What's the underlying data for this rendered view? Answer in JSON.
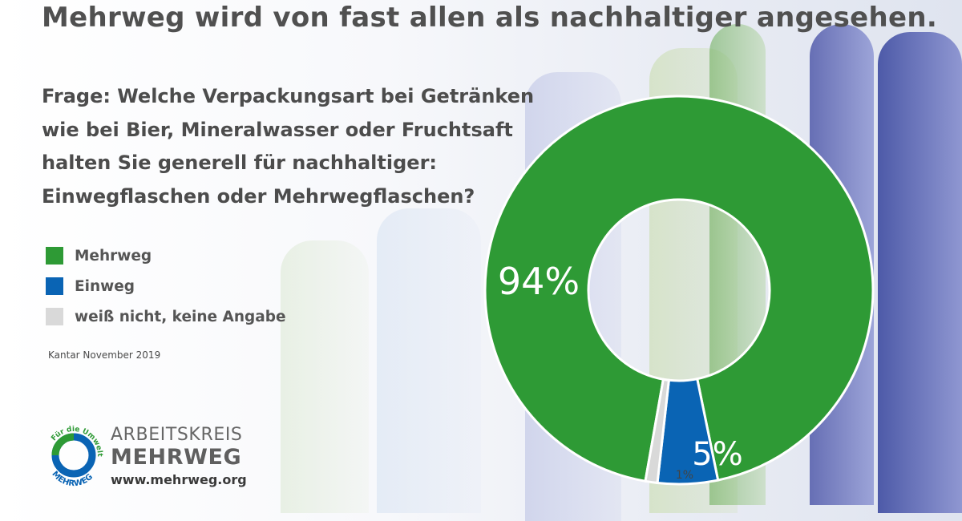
{
  "title": "Mehrweg wird von fast allen als nachhaltiger angesehen.",
  "question": [
    "Frage: Welche Verpackungsart bei Getränken",
    "wie bei Bier, Mineralwasser oder Fruchtsaft",
    "halten Sie generell für nachhaltiger:",
    "Einwegflaschen oder Mehrwegflaschen?"
  ],
  "source": "Kantar November 2019",
  "colors": {
    "mehrweg": "#2e9a35",
    "einweg": "#0a64b4",
    "unknown": "#d9d9d9",
    "text": "#4c4c4c"
  },
  "chart_data": {
    "type": "pie",
    "donut": true,
    "categories": [
      "Mehrweg",
      "Einweg",
      "weiß nicht, keine Angabe"
    ],
    "values": [
      94,
      5,
      1
    ],
    "unit": "%",
    "colors": [
      "#2e9a35",
      "#0a64b4",
      "#d9d9d9"
    ],
    "data_labels": [
      "94%",
      "5%",
      "1%"
    ],
    "legend_position": "left"
  },
  "logo": {
    "line1": "ARBEITSKREIS",
    "line2": "MEHRWEG",
    "url": "www.mehrweg.org",
    "ring_text_top": "Für die Umwelt",
    "ring_text_bottom": "MEHRWEG"
  }
}
